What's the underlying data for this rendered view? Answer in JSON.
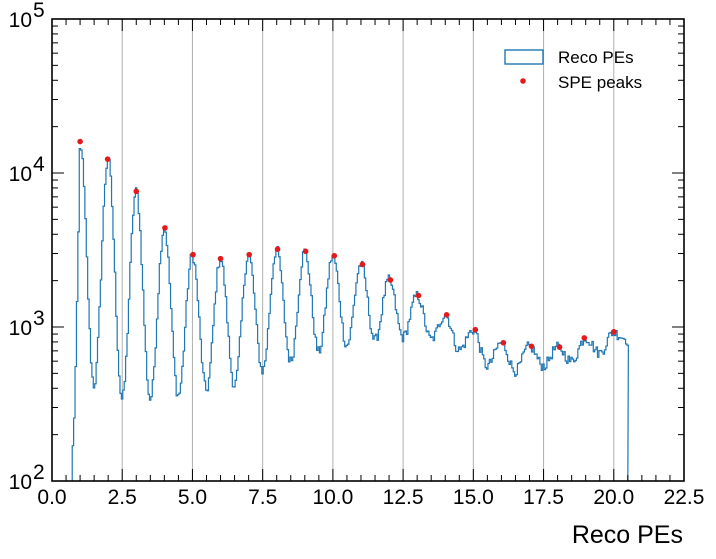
{
  "chart_data": {
    "type": "histogram",
    "xlabel": "Reco PEs",
    "ylabel": "",
    "xlim": [
      0,
      22.5
    ],
    "ylim": [
      100,
      100000
    ],
    "yscale": "log",
    "grid": "x-only",
    "x_tick_labels": [
      "0.0",
      "2.5",
      "5.0",
      "7.5",
      "10.0",
      "12.5",
      "15.0",
      "17.5",
      "20.0",
      "22.5"
    ],
    "y_tick_labels": [
      {
        "base": "10",
        "exp": "2"
      },
      {
        "base": "10",
        "exp": "3"
      },
      {
        "base": "10",
        "exp": "4"
      },
      {
        "base": "10",
        "exp": "5"
      }
    ],
    "colors": {
      "histogram": "#1f77b4",
      "peaks": "#e41a1c",
      "grid": "#b0b0b0"
    },
    "legend": {
      "location": "top-right",
      "entries": [
        {
          "label": "Reco PEs",
          "marker": "box"
        },
        {
          "label": "SPE peaks",
          "marker": "dot"
        }
      ]
    },
    "series": [
      {
        "name": "Reco PEs",
        "kind": "step",
        "approximate_model": {
          "start": 0.72,
          "end": 20.5,
          "peaks": [
            1,
            2,
            3,
            4,
            5,
            6,
            7,
            8,
            9,
            10,
            11,
            12,
            13,
            14,
            15,
            16,
            17,
            18,
            19,
            20
          ],
          "peak_heights": [
            16000,
            12300,
            7600,
            4400,
            2950,
            2780,
            2950,
            3200,
            3100,
            2900,
            2550,
            2020,
            1600,
            1200,
            960,
            790,
            750,
            740,
            850,
            930
          ],
          "valleys": [
            1.5,
            2.5,
            3.5,
            4.5,
            5.5,
            6.5,
            7.5,
            8.5,
            9.5,
            10.5,
            11.5,
            12.5,
            13.5,
            14.5,
            15.5,
            16.5,
            17.5,
            18.5,
            19.5
          ],
          "valley_heights": [
            420,
            340,
            340,
            360,
            390,
            420,
            520,
            600,
            690,
            760,
            820,
            860,
            830,
            710,
            560,
            520,
            560,
            600,
            680
          ]
        }
      },
      {
        "name": "SPE peaks",
        "kind": "scatter",
        "x": [
          1.0,
          1.98,
          3.0,
          4.02,
          5.02,
          6.0,
          7.02,
          8.03,
          9.03,
          10.05,
          11.05,
          12.05,
          13.05,
          14.05,
          15.07,
          16.07,
          17.07,
          18.07,
          18.95,
          20.0
        ],
        "y": [
          16000,
          12300,
          7600,
          4400,
          2950,
          2780,
          2950,
          3200,
          3100,
          2900,
          2550,
          2020,
          1600,
          1200,
          960,
          790,
          750,
          740,
          850,
          930
        ]
      }
    ]
  }
}
